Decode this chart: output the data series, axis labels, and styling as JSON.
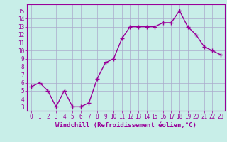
{
  "x": [
    0,
    1,
    2,
    3,
    4,
    5,
    6,
    7,
    8,
    9,
    10,
    11,
    12,
    13,
    14,
    15,
    16,
    17,
    18,
    19,
    20,
    21,
    22,
    23
  ],
  "y": [
    5.5,
    6.0,
    5.0,
    3.0,
    5.0,
    3.0,
    3.0,
    3.5,
    6.5,
    8.5,
    9.0,
    11.5,
    13.0,
    13.0,
    13.0,
    13.0,
    13.5,
    13.5,
    15.0,
    13.0,
    12.0,
    10.5,
    10.0,
    9.5
  ],
  "line_color": "#990099",
  "marker": "+",
  "markersize": 4,
  "linewidth": 1.0,
  "xlabel": "Windchill (Refroidissement éolien,°C)",
  "xlabel_fontsize": 6.5,
  "ylabel_ticks": [
    3,
    4,
    5,
    6,
    7,
    8,
    9,
    10,
    11,
    12,
    13,
    14,
    15
  ],
  "xtick_labels": [
    "0",
    "1",
    "2",
    "3",
    "4",
    "5",
    "6",
    "7",
    "8",
    "9",
    "10",
    "11",
    "12",
    "13",
    "14",
    "15",
    "16",
    "17",
    "18",
    "19",
    "20",
    "21",
    "22",
    "23"
  ],
  "ylim": [
    2.5,
    15.8
  ],
  "xlim": [
    -0.5,
    23.5
  ],
  "bg_color": "#c8eee8",
  "grid_color": "#aaaacc",
  "tick_color": "#990099",
  "label_color": "#990099",
  "tick_fontsize": 5.5,
  "grid_linewidth": 0.5
}
